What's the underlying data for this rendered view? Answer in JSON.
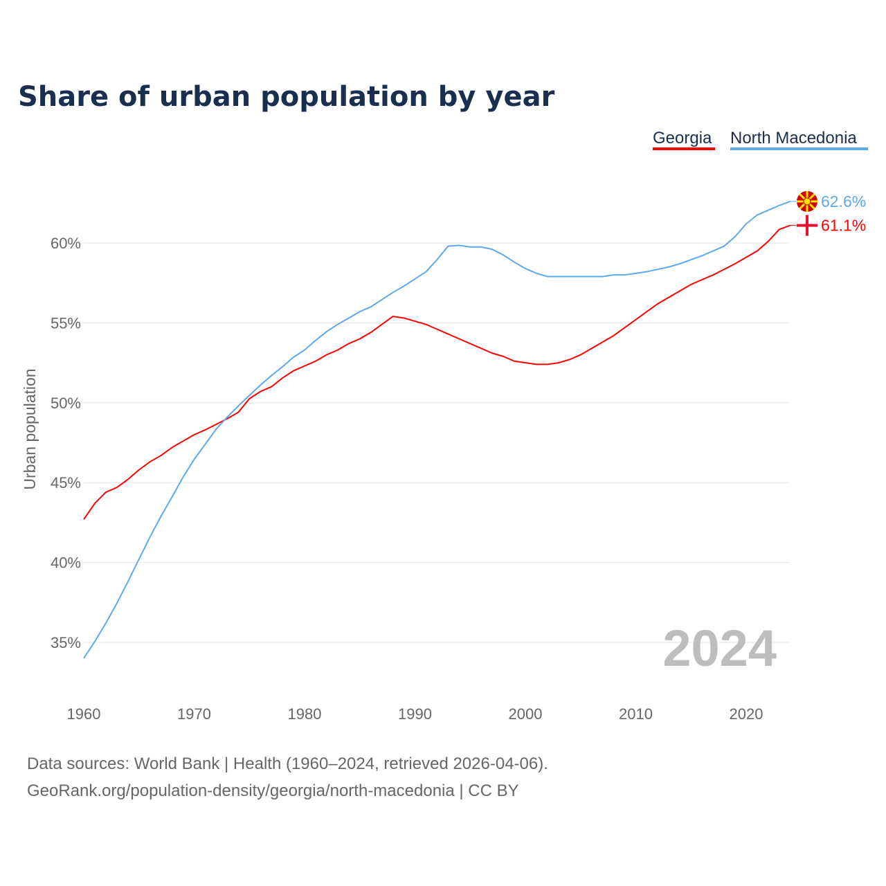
{
  "chart_data": {
    "type": "line",
    "title": "Share of urban population by year",
    "xlabel": "",
    "ylabel": "Urban population",
    "xlim": [
      1960,
      2024
    ],
    "ylim": [
      33,
      63
    ],
    "grid": true,
    "legend_position": "top-right",
    "x_ticks": [
      "1960",
      "1970",
      "1980",
      "1990",
      "2000",
      "2010",
      "2020"
    ],
    "y_ticks": [
      {
        "value": 35,
        "label": "35%"
      },
      {
        "value": 40,
        "label": "40%"
      },
      {
        "value": 45,
        "label": "45%"
      },
      {
        "value": 50,
        "label": "50%"
      },
      {
        "value": 55,
        "label": "55%"
      },
      {
        "value": 60,
        "label": "60%"
      }
    ],
    "year_watermark": "2024",
    "x": [
      1960,
      1961,
      1962,
      1963,
      1964,
      1965,
      1966,
      1967,
      1968,
      1969,
      1970,
      1971,
      1972,
      1973,
      1974,
      1975,
      1976,
      1977,
      1978,
      1979,
      1980,
      1981,
      1982,
      1983,
      1984,
      1985,
      1986,
      1987,
      1988,
      1989,
      1990,
      1991,
      1992,
      1993,
      1994,
      1995,
      1996,
      1997,
      1998,
      1999,
      2000,
      2001,
      2002,
      2003,
      2004,
      2005,
      2006,
      2007,
      2008,
      2009,
      2010,
      2011,
      2012,
      2013,
      2014,
      2015,
      2016,
      2017,
      2018,
      2019,
      2020,
      2021,
      2022,
      2023,
      2024
    ],
    "series": [
      {
        "name": "Georgia",
        "color": "#ff0000",
        "end_label": "61.1%",
        "values": [
          42.7,
          43.7,
          44.4,
          44.7,
          45.2,
          45.8,
          46.3,
          46.7,
          47.2,
          47.6,
          48.0,
          48.3,
          48.65,
          49.0,
          49.4,
          50.25,
          50.7,
          51.0,
          51.55,
          52.0,
          52.3,
          52.6,
          53.0,
          53.3,
          53.7,
          54.0,
          54.4,
          54.9,
          55.4,
          55.3,
          55.1,
          54.9,
          54.6,
          54.3,
          54.0,
          53.7,
          53.4,
          53.1,
          52.9,
          52.6,
          52.5,
          52.4,
          52.4,
          52.5,
          52.7,
          53.0,
          53.4,
          53.8,
          54.2,
          54.7,
          55.2,
          55.7,
          56.2,
          56.6,
          57.0,
          57.4,
          57.7,
          58.0,
          58.35,
          58.7,
          59.1,
          59.5,
          60.1,
          60.85,
          61.1
        ]
      },
      {
        "name": "North Macedonia",
        "color": "#5ea8ed",
        "end_label": "62.6%",
        "values": [
          34.0,
          35.05,
          36.2,
          37.45,
          38.8,
          40.2,
          41.6,
          42.9,
          44.1,
          45.35,
          46.45,
          47.4,
          48.35,
          49.1,
          49.8,
          50.45,
          51.1,
          51.7,
          52.25,
          52.85,
          53.3,
          53.9,
          54.45,
          54.9,
          55.3,
          55.7,
          56.0,
          56.45,
          56.9,
          57.3,
          57.75,
          58.2,
          58.95,
          59.8,
          59.85,
          59.75,
          59.75,
          59.6,
          59.25,
          58.8,
          58.4,
          58.1,
          57.9,
          57.9,
          57.9,
          57.9,
          57.9,
          57.9,
          58.0,
          58.0,
          58.1,
          58.2,
          58.35,
          58.5,
          58.7,
          58.95,
          59.2,
          59.5,
          59.8,
          60.4,
          61.2,
          61.75,
          62.05,
          62.35,
          62.6
        ]
      }
    ]
  },
  "footer": {
    "line1": "Data sources: World Bank | Health (1960–2024, retrieved 2026-04-06).",
    "line2": "GeoRank.org/population-density/georgia/north-macedonia | CC BY"
  }
}
